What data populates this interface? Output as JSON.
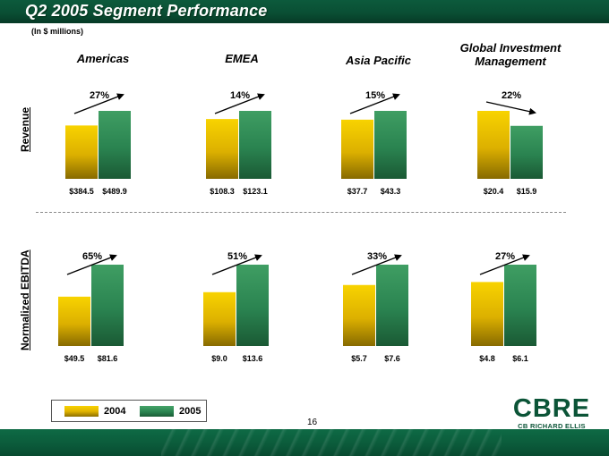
{
  "header": {
    "title": "Q2 2005 Segment Performance",
    "subtitle": "(In $ millions)"
  },
  "regions": [
    "Americas",
    "EMEA",
    "Asia Pacific",
    "Global Investment Management"
  ],
  "metrics": [
    "Revenue",
    "Normalized EBITDA"
  ],
  "legend": [
    {
      "label": "2004",
      "color": "#e9bd00"
    },
    {
      "label": "2005",
      "color": "#2b8752"
    }
  ],
  "chart_data": [
    {
      "type": "bar",
      "metric": "Revenue",
      "categories": [
        "Americas",
        "EMEA",
        "Asia Pacific",
        "Global Investment Management"
      ],
      "series": [
        {
          "name": "2004",
          "values": [
            384.5,
            108.3,
            37.7,
            20.4
          ],
          "labels": [
            "$384.5",
            "$108.3",
            "$37.7",
            "$20.4"
          ]
        },
        {
          "name": "2005",
          "values": [
            489.9,
            123.1,
            43.3,
            15.9
          ],
          "labels": [
            "$489.9",
            "$123.1",
            "$43.3",
            "$15.9"
          ]
        }
      ],
      "growth": [
        "27%",
        "14%",
        "15%",
        "22%"
      ],
      "trend": [
        "up",
        "up",
        "up",
        "down"
      ]
    },
    {
      "type": "bar",
      "metric": "Normalized EBITDA",
      "categories": [
        "Americas",
        "EMEA",
        "Asia Pacific",
        "Global Investment Management"
      ],
      "series": [
        {
          "name": "2004",
          "values": [
            49.5,
            9.0,
            5.7,
            4.8
          ],
          "labels": [
            "$49.5",
            "$9.0",
            "$5.7",
            "$4.8"
          ]
        },
        {
          "name": "2005",
          "values": [
            81.6,
            13.6,
            7.6,
            6.1
          ],
          "labels": [
            "$81.6",
            "$13.6",
            "$7.6",
            "$6.1"
          ]
        }
      ],
      "growth": [
        "65%",
        "51%",
        "33%",
        "27%"
      ],
      "trend": [
        "up",
        "up",
        "up",
        "up"
      ]
    }
  ],
  "page_number": "16",
  "logo": {
    "main": "CBRE",
    "sub": "CB RICHARD ELLIS"
  }
}
